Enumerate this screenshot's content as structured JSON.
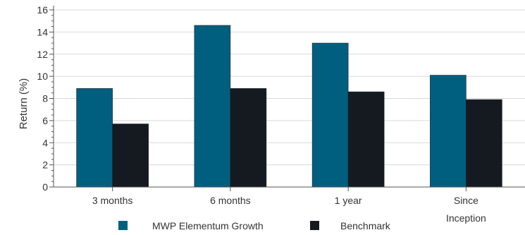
{
  "chart_data": {
    "type": "bar",
    "title": "",
    "xlabel": "",
    "ylabel": "Return (%)",
    "ylim": [
      0,
      16
    ],
    "yticks": [
      0,
      2,
      4,
      6,
      8,
      10,
      12,
      14,
      16
    ],
    "grid": true,
    "legend_position": "bottom",
    "categories": [
      "3 months",
      "6 months",
      "1 year",
      "Since Inception"
    ],
    "category_lines": [
      [
        "3 months"
      ],
      [
        "6 months"
      ],
      [
        "1 year"
      ],
      [
        "Since",
        "Inception"
      ]
    ],
    "series": [
      {
        "name": "MWP Elementum Growth",
        "color": "#005f7f",
        "values": [
          8.9,
          14.6,
          13.0,
          10.1
        ]
      },
      {
        "name": "Benchmark",
        "color": "#141a20",
        "values": [
          5.7,
          8.9,
          8.6,
          7.9
        ]
      }
    ],
    "colors": {
      "grid": "#d9d9d9",
      "axis": "#555555",
      "text": "#333333"
    }
  }
}
